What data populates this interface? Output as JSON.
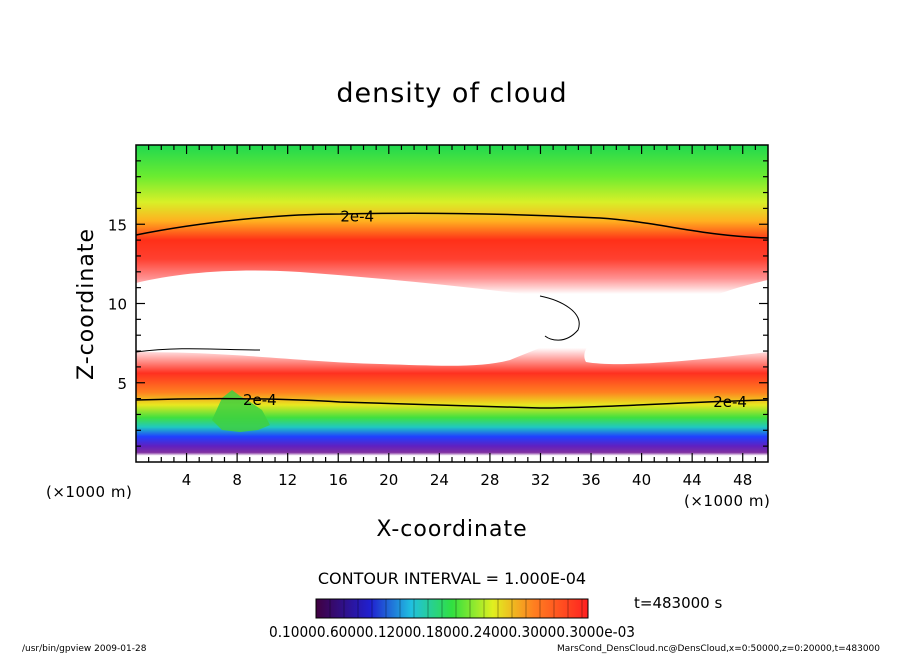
{
  "chart_data": {
    "type": "heatmap",
    "title": "density of cloud",
    "xlabel": "X-coordinate",
    "ylabel": "Z-coordinate",
    "x_unit": "(×1000 m)",
    "z_unit": "(×1000 m)",
    "xlim": [
      0,
      50
    ],
    "ylim": [
      0,
      20
    ],
    "x_ticks": [
      4,
      8,
      12,
      16,
      20,
      24,
      28,
      32,
      36,
      40,
      44,
      48
    ],
    "y_ticks": [
      5,
      10,
      15
    ],
    "contour_interval_text": "CONTOUR INTERVAL = 1.000E-04",
    "contour_labels": [
      {
        "text": "2e-4",
        "x": 17.5,
        "z": 15.5
      },
      {
        "text": "2e-4",
        "x": 9.8,
        "z": 3.9
      },
      {
        "text": "2e-4",
        "x": 47.0,
        "z": 3.8
      }
    ],
    "colorbar_labels_text": "0.10000.60000.12000.18000.24000.30000.3000e-03",
    "colorbar_note": "t=483000 s",
    "footer_left": "/usr/bin/gpview   2009-01-28",
    "footer_right": "MarsCond_DensCloud.nc@DensCloud,x=0:50000,z=0:20000,t=483000"
  }
}
